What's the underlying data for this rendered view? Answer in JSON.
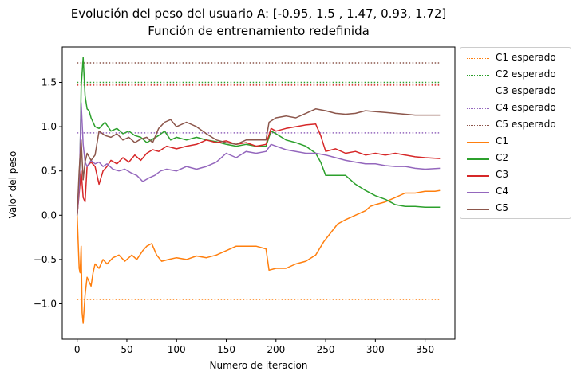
{
  "chart_data": {
    "type": "line",
    "title": "Evolución del peso del usuario A: [-0.95, 1.5 , 1.47, 0.93, 1.72]",
    "subtitle": "Función de entrenamiento redefinida",
    "xlabel": "Numero de iteracion",
    "ylabel": "Valor del peso",
    "xlim": [
      -15,
      380
    ],
    "ylim": [
      -1.4,
      1.9
    ],
    "xticks": [
      0,
      50,
      100,
      150,
      200,
      250,
      300,
      350
    ],
    "yticks": [
      -1.0,
      -0.5,
      0.0,
      0.5,
      1.0,
      1.5
    ],
    "ytick_labels": [
      "−1.0",
      "−0.5",
      "0.0",
      "0.5",
      "1.0",
      "1.5"
    ],
    "grid": false,
    "legend_position": "outside right, top",
    "expected": [
      {
        "name": "C1 esperado",
        "value": -0.95,
        "x_range": [
          0,
          365
        ],
        "color": "#ff7f0e",
        "style": "dotted"
      },
      {
        "name": "C2 esperado",
        "value": 1.5,
        "x_range": [
          0,
          365
        ],
        "color": "#2ca02c",
        "style": "dotted"
      },
      {
        "name": "C3 esperado",
        "value": 1.47,
        "x_range": [
          0,
          365
        ],
        "color": "#d62728",
        "style": "dotted"
      },
      {
        "name": "C4 esperado",
        "value": 0.93,
        "x_range": [
          0,
          365
        ],
        "color": "#9467bd",
        "style": "dotted"
      },
      {
        "name": "C5 esperado",
        "value": 1.72,
        "x_range": [
          0,
          365
        ],
        "color": "#8c564b",
        "style": "dotted"
      }
    ],
    "series": [
      {
        "name": "C1",
        "color": "#ff7f0e",
        "points": [
          [
            0,
            0.0
          ],
          [
            2,
            -0.6
          ],
          [
            3,
            -0.65
          ],
          [
            4,
            -0.35
          ],
          [
            5,
            -1.1
          ],
          [
            6,
            -1.22
          ],
          [
            8,
            -0.9
          ],
          [
            10,
            -0.7
          ],
          [
            12,
            -0.75
          ],
          [
            14,
            -0.8
          ],
          [
            16,
            -0.65
          ],
          [
            18,
            -0.55
          ],
          [
            22,
            -0.6
          ],
          [
            26,
            -0.5
          ],
          [
            30,
            -0.55
          ],
          [
            36,
            -0.48
          ],
          [
            42,
            -0.45
          ],
          [
            48,
            -0.52
          ],
          [
            55,
            -0.45
          ],
          [
            60,
            -0.5
          ],
          [
            66,
            -0.4
          ],
          [
            70,
            -0.35
          ],
          [
            75,
            -0.32
          ],
          [
            80,
            -0.45
          ],
          [
            85,
            -0.52
          ],
          [
            92,
            -0.5
          ],
          [
            100,
            -0.48
          ],
          [
            110,
            -0.5
          ],
          [
            120,
            -0.46
          ],
          [
            130,
            -0.48
          ],
          [
            140,
            -0.45
          ],
          [
            150,
            -0.4
          ],
          [
            160,
            -0.35
          ],
          [
            170,
            -0.35
          ],
          [
            180,
            -0.35
          ],
          [
            190,
            -0.38
          ],
          [
            193,
            -0.62
          ],
          [
            200,
            -0.6
          ],
          [
            210,
            -0.6
          ],
          [
            220,
            -0.55
          ],
          [
            230,
            -0.52
          ],
          [
            240,
            -0.45
          ],
          [
            248,
            -0.3
          ],
          [
            255,
            -0.2
          ],
          [
            262,
            -0.1
          ],
          [
            270,
            -0.05
          ],
          [
            280,
            0.0
          ],
          [
            290,
            0.05
          ],
          [
            295,
            0.1
          ],
          [
            300,
            0.12
          ],
          [
            310,
            0.15
          ],
          [
            320,
            0.2
          ],
          [
            330,
            0.25
          ],
          [
            340,
            0.25
          ],
          [
            350,
            0.27
          ],
          [
            360,
            0.27
          ],
          [
            365,
            0.28
          ]
        ]
      },
      {
        "name": "C2",
        "color": "#2ca02c",
        "points": [
          [
            0,
            0.0
          ],
          [
            2,
            0.3
          ],
          [
            3,
            0.7
          ],
          [
            4,
            1.45
          ],
          [
            6,
            1.78
          ],
          [
            8,
            1.35
          ],
          [
            10,
            1.2
          ],
          [
            12,
            1.18
          ],
          [
            14,
            1.1
          ],
          [
            18,
            1.0
          ],
          [
            22,
            0.98
          ],
          [
            28,
            1.05
          ],
          [
            34,
            0.95
          ],
          [
            40,
            0.98
          ],
          [
            46,
            0.92
          ],
          [
            52,
            0.95
          ],
          [
            58,
            0.9
          ],
          [
            64,
            0.88
          ],
          [
            70,
            0.82
          ],
          [
            76,
            0.86
          ],
          [
            82,
            0.9
          ],
          [
            88,
            0.95
          ],
          [
            94,
            0.85
          ],
          [
            100,
            0.88
          ],
          [
            110,
            0.85
          ],
          [
            120,
            0.88
          ],
          [
            130,
            0.85
          ],
          [
            140,
            0.83
          ],
          [
            150,
            0.8
          ],
          [
            160,
            0.78
          ],
          [
            170,
            0.8
          ],
          [
            180,
            0.78
          ],
          [
            190,
            0.78
          ],
          [
            195,
            0.95
          ],
          [
            200,
            0.92
          ],
          [
            210,
            0.85
          ],
          [
            220,
            0.82
          ],
          [
            230,
            0.78
          ],
          [
            240,
            0.7
          ],
          [
            245,
            0.6
          ],
          [
            250,
            0.45
          ],
          [
            260,
            0.45
          ],
          [
            270,
            0.45
          ],
          [
            280,
            0.35
          ],
          [
            290,
            0.28
          ],
          [
            300,
            0.22
          ],
          [
            310,
            0.18
          ],
          [
            320,
            0.12
          ],
          [
            330,
            0.1
          ],
          [
            340,
            0.1
          ],
          [
            350,
            0.09
          ],
          [
            365,
            0.09
          ]
        ]
      },
      {
        "name": "C3",
        "color": "#d62728",
        "points": [
          [
            0,
            0.0
          ],
          [
            2,
            0.25
          ],
          [
            4,
            0.5
          ],
          [
            6,
            0.2
          ],
          [
            8,
            0.15
          ],
          [
            10,
            0.55
          ],
          [
            14,
            0.6
          ],
          [
            18,
            0.55
          ],
          [
            22,
            0.35
          ],
          [
            26,
            0.5
          ],
          [
            30,
            0.55
          ],
          [
            34,
            0.62
          ],
          [
            40,
            0.58
          ],
          [
            46,
            0.65
          ],
          [
            52,
            0.6
          ],
          [
            58,
            0.68
          ],
          [
            64,
            0.62
          ],
          [
            70,
            0.7
          ],
          [
            76,
            0.74
          ],
          [
            82,
            0.72
          ],
          [
            90,
            0.78
          ],
          [
            100,
            0.75
          ],
          [
            110,
            0.78
          ],
          [
            120,
            0.8
          ],
          [
            130,
            0.85
          ],
          [
            140,
            0.82
          ],
          [
            150,
            0.84
          ],
          [
            160,
            0.8
          ],
          [
            170,
            0.82
          ],
          [
            180,
            0.78
          ],
          [
            190,
            0.8
          ],
          [
            195,
            0.98
          ],
          [
            200,
            0.95
          ],
          [
            210,
            0.98
          ],
          [
            220,
            1.0
          ],
          [
            230,
            1.02
          ],
          [
            240,
            1.03
          ],
          [
            245,
            0.9
          ],
          [
            250,
            0.72
          ],
          [
            260,
            0.75
          ],
          [
            270,
            0.7
          ],
          [
            280,
            0.72
          ],
          [
            290,
            0.68
          ],
          [
            300,
            0.7
          ],
          [
            310,
            0.68
          ],
          [
            320,
            0.7
          ],
          [
            330,
            0.68
          ],
          [
            340,
            0.66
          ],
          [
            350,
            0.65
          ],
          [
            365,
            0.64
          ]
        ]
      },
      {
        "name": "C4",
        "color": "#9467bd",
        "points": [
          [
            0,
            0.0
          ],
          [
            2,
            0.3
          ],
          [
            4,
            1.27
          ],
          [
            6,
            0.8
          ],
          [
            8,
            0.6
          ],
          [
            10,
            0.55
          ],
          [
            14,
            0.62
          ],
          [
            18,
            0.58
          ],
          [
            22,
            0.6
          ],
          [
            26,
            0.55
          ],
          [
            30,
            0.58
          ],
          [
            36,
            0.52
          ],
          [
            42,
            0.5
          ],
          [
            48,
            0.52
          ],
          [
            54,
            0.48
          ],
          [
            60,
            0.45
          ],
          [
            66,
            0.38
          ],
          [
            72,
            0.42
          ],
          [
            78,
            0.45
          ],
          [
            84,
            0.5
          ],
          [
            90,
            0.52
          ],
          [
            100,
            0.5
          ],
          [
            110,
            0.55
          ],
          [
            120,
            0.52
          ],
          [
            130,
            0.55
          ],
          [
            140,
            0.6
          ],
          [
            150,
            0.7
          ],
          [
            160,
            0.65
          ],
          [
            170,
            0.72
          ],
          [
            180,
            0.7
          ],
          [
            190,
            0.72
          ],
          [
            195,
            0.8
          ],
          [
            200,
            0.78
          ],
          [
            210,
            0.74
          ],
          [
            220,
            0.72
          ],
          [
            230,
            0.7
          ],
          [
            240,
            0.7
          ],
          [
            250,
            0.68
          ],
          [
            260,
            0.65
          ],
          [
            270,
            0.62
          ],
          [
            280,
            0.6
          ],
          [
            290,
            0.58
          ],
          [
            300,
            0.58
          ],
          [
            310,
            0.56
          ],
          [
            320,
            0.55
          ],
          [
            330,
            0.55
          ],
          [
            340,
            0.53
          ],
          [
            350,
            0.52
          ],
          [
            365,
            0.53
          ]
        ]
      },
      {
        "name": "C5",
        "color": "#8c564b",
        "points": [
          [
            0,
            0.0
          ],
          [
            2,
            0.5
          ],
          [
            4,
            0.85
          ],
          [
            6,
            0.4
          ],
          [
            8,
            0.6
          ],
          [
            10,
            0.7
          ],
          [
            14,
            0.62
          ],
          [
            18,
            0.68
          ],
          [
            22,
            0.95
          ],
          [
            28,
            0.9
          ],
          [
            34,
            0.88
          ],
          [
            40,
            0.92
          ],
          [
            46,
            0.85
          ],
          [
            52,
            0.88
          ],
          [
            58,
            0.82
          ],
          [
            64,
            0.86
          ],
          [
            70,
            0.88
          ],
          [
            76,
            0.82
          ],
          [
            82,
            0.98
          ],
          [
            88,
            1.05
          ],
          [
            94,
            1.08
          ],
          [
            100,
            1.0
          ],
          [
            110,
            1.05
          ],
          [
            120,
            1.0
          ],
          [
            130,
            0.92
          ],
          [
            140,
            0.85
          ],
          [
            150,
            0.82
          ],
          [
            160,
            0.8
          ],
          [
            170,
            0.85
          ],
          [
            180,
            0.85
          ],
          [
            190,
            0.85
          ],
          [
            193,
            1.05
          ],
          [
            200,
            1.1
          ],
          [
            210,
            1.12
          ],
          [
            220,
            1.1
          ],
          [
            230,
            1.15
          ],
          [
            240,
            1.2
          ],
          [
            250,
            1.18
          ],
          [
            260,
            1.15
          ],
          [
            270,
            1.14
          ],
          [
            280,
            1.15
          ],
          [
            290,
            1.18
          ],
          [
            300,
            1.17
          ],
          [
            310,
            1.16
          ],
          [
            320,
            1.15
          ],
          [
            330,
            1.14
          ],
          [
            340,
            1.13
          ],
          [
            350,
            1.13
          ],
          [
            365,
            1.13
          ]
        ]
      }
    ]
  }
}
